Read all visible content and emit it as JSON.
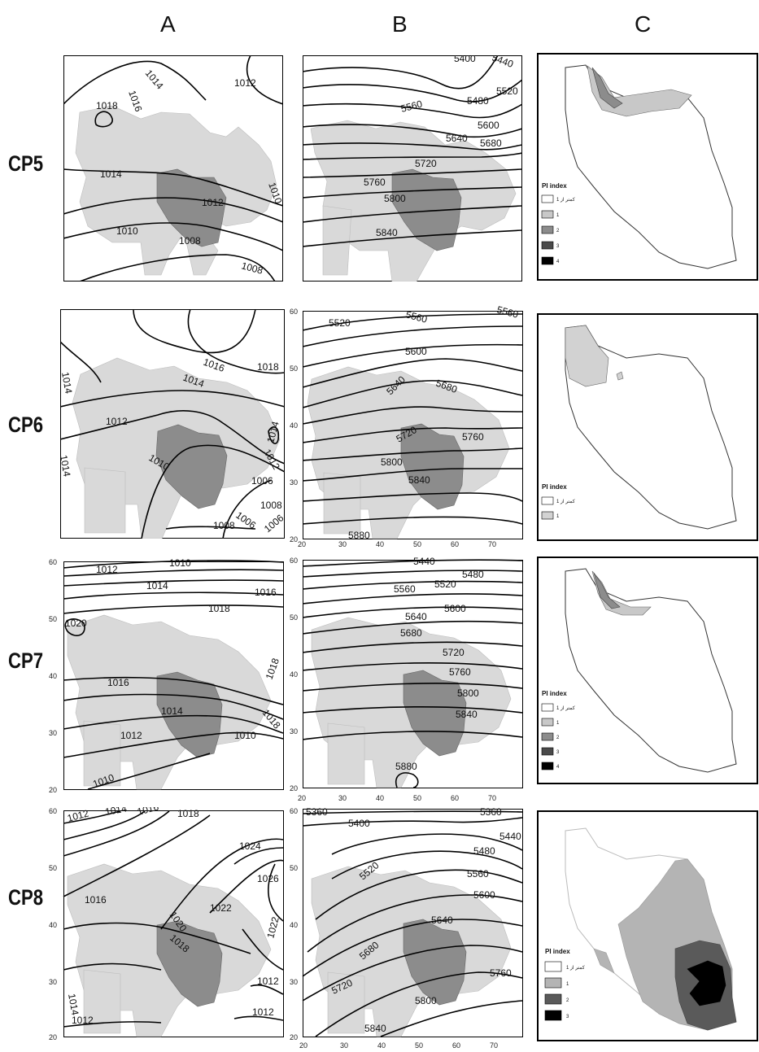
{
  "columns": [
    "A",
    "B",
    "C"
  ],
  "rows": [
    {
      "label": "CP5",
      "a_isobars": [
        "1014",
        "1016",
        "1012",
        "1018",
        "1014",
        "1012",
        "1010",
        "1010",
        "1008",
        "1008"
      ],
      "b_contours": [
        "5400",
        "5440",
        "5480",
        "5520",
        "5560",
        "5600",
        "5640",
        "5680",
        "5720",
        "5760",
        "5800",
        "5840"
      ],
      "c_legend": {
        "title": "PI index",
        "items": [
          "كمتر از 1",
          "1",
          "2",
          "3",
          "4"
        ],
        "colors": [
          "#ffffff",
          "#c8c8c8",
          "#8c8c8c",
          "#4a4a4a",
          "#000000"
        ]
      }
    },
    {
      "label": "CP6",
      "a_isobars": [
        "1016",
        "1018",
        "1014",
        "1014",
        "1012",
        "1010",
        "1014",
        "1012",
        "1006",
        "1006",
        "1008",
        "1008",
        "1006",
        "1014"
      ],
      "b_contours": [
        "5520",
        "5560",
        "5560",
        "5600",
        "5640",
        "5680",
        "5720",
        "5760",
        "5800",
        "5840",
        "5880"
      ],
      "b_yticks": [
        "60",
        "50",
        "40",
        "30",
        "20"
      ],
      "b_xticks": [
        "20",
        "30",
        "40",
        "50",
        "60",
        "70"
      ],
      "c_legend": {
        "title": "PI index",
        "items": [
          "كمتر از 1",
          "1"
        ],
        "colors": [
          "#ffffff",
          "#d2d2d2"
        ]
      }
    },
    {
      "label": "CP7",
      "a_isobars": [
        "1012",
        "1010",
        "1014",
        "1016",
        "1018",
        "1020",
        "1016",
        "1014",
        "1012",
        "1010",
        "1010",
        "1018",
        "1018"
      ],
      "a_yticks": [
        "60",
        "50",
        "40",
        "30",
        "20"
      ],
      "b_contours": [
        "5440",
        "5480",
        "5520",
        "5560",
        "5600",
        "5640",
        "5680",
        "5720",
        "5760",
        "5800",
        "5840",
        "5880"
      ],
      "b_yticks": [
        "60",
        "50",
        "40",
        "30",
        "20"
      ],
      "b_xticks": [
        "20",
        "30",
        "40",
        "50",
        "60",
        "70"
      ],
      "c_legend": {
        "title": "PI index",
        "items": [
          "كمتر از 1",
          "1",
          "2",
          "3",
          "4"
        ],
        "colors": [
          "#ffffff",
          "#c8c8c8",
          "#8c8c8c",
          "#4a4a4a",
          "#000000"
        ]
      }
    },
    {
      "label": "CP8",
      "a_isobars": [
        "1012",
        "1014",
        "1016",
        "1018",
        "1024",
        "1026",
        "1016",
        "1020",
        "1022",
        "1018",
        "1022",
        "1014",
        "1012",
        "1012",
        "1012"
      ],
      "a_yticks": [
        "60",
        "50",
        "40",
        "30",
        "20"
      ],
      "b_contours": [
        "5360",
        "5400",
        "5360",
        "5440",
        "5480",
        "5520",
        "5560",
        "5600",
        "5640",
        "5680",
        "5720",
        "5760",
        "5800",
        "5840"
      ],
      "b_yticks": [
        "60",
        "50",
        "40",
        "30",
        "20"
      ],
      "b_xticks": [
        "20",
        "30",
        "40",
        "50",
        "60",
        "70"
      ],
      "c_legend": {
        "title": "PI index",
        "items": [
          "كمتر از 1",
          "1",
          "2",
          "3"
        ],
        "colors": [
          "#ffffff",
          "#b4b4b4",
          "#5a5a5a",
          "#000000"
        ]
      }
    }
  ],
  "map_colors": {
    "land": "#d9d9d9",
    "iran": "#8c8c8c",
    "contour": "#000000",
    "sea": "#ffffff"
  }
}
